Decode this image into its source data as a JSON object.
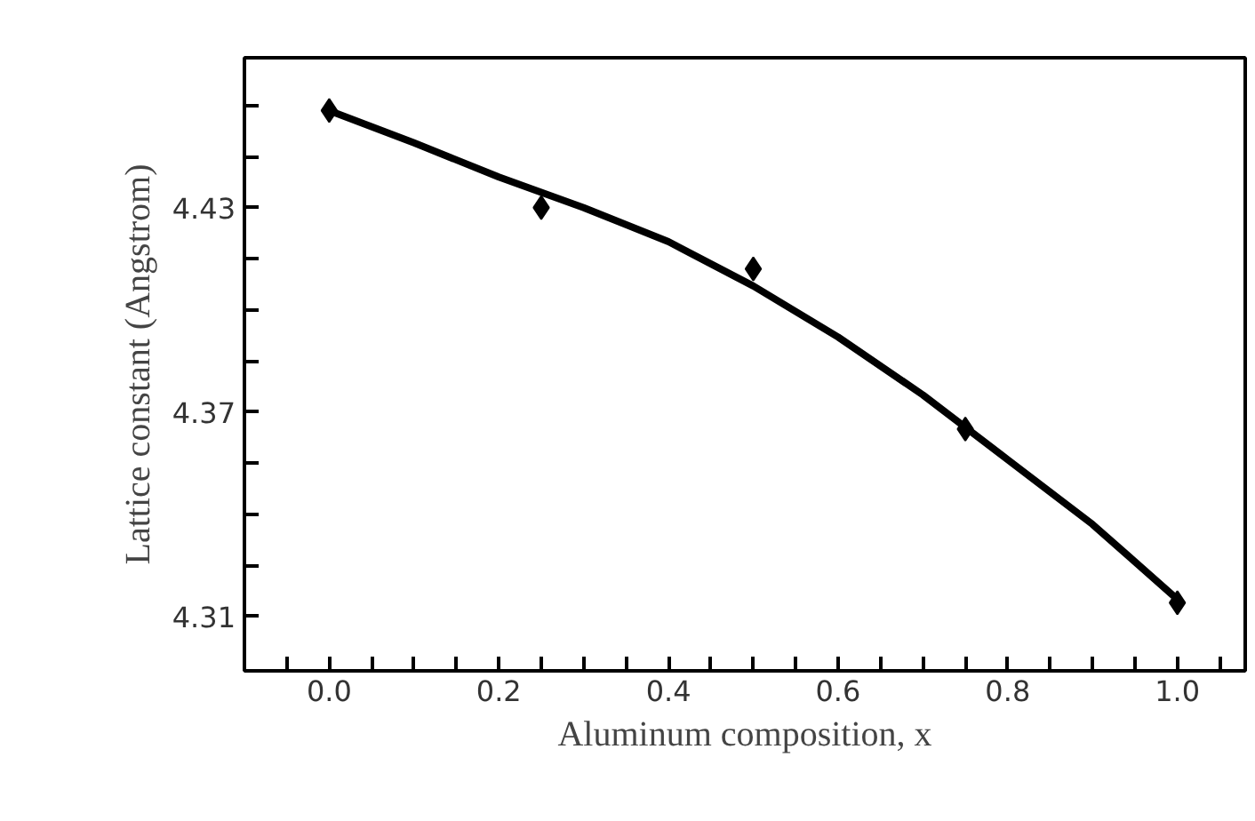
{
  "chart_data": {
    "type": "scatter",
    "xlabel": "Aluminum composition, x",
    "ylabel": "Lattice constant (Angstrom)",
    "xlim": [
      -0.1,
      1.08
    ],
    "ylim": [
      4.294,
      4.474
    ],
    "xticks": [
      {
        "value": -0.1,
        "label": null
      },
      {
        "value": -0.05,
        "label": null
      },
      {
        "value": 0,
        "label": "0.0"
      },
      {
        "value": 0.05,
        "label": null
      },
      {
        "value": 0.1,
        "label": null
      },
      {
        "value": 0.15,
        "label": null
      },
      0.2,
      {
        "value": 0.25,
        "label": null
      },
      {
        "value": 0.3,
        "label": null
      },
      {
        "value": 0.35,
        "label": null
      },
      0.4,
      {
        "value": 0.45,
        "label": null
      },
      {
        "value": 0.5,
        "label": null
      },
      {
        "value": 0.55,
        "label": null
      },
      0.6,
      {
        "value": 0.65,
        "label": null
      },
      {
        "value": 0.7,
        "label": null
      },
      {
        "value": 0.75,
        "label": null
      },
      0.8,
      {
        "value": 0.85,
        "label": null
      },
      {
        "value": 0.9,
        "label": null
      },
      {
        "value": 0.95,
        "label": null
      },
      {
        "value": 1,
        "label": "1.0"
      },
      {
        "value": 1.05,
        "label": null
      }
    ],
    "yticks": [
      4.31,
      {
        "value": 4.325,
        "label": null
      },
      {
        "value": 4.34,
        "label": null
      },
      {
        "value": 4.355,
        "label": null
      },
      4.37,
      {
        "value": 4.385,
        "label": null
      },
      {
        "value": 4.4,
        "label": null
      },
      {
        "value": 4.415,
        "label": null
      },
      4.43,
      {
        "value": 4.445,
        "label": null
      },
      {
        "value": 4.46,
        "label": null
      }
    ],
    "grid": false,
    "series": [
      {
        "marker": "diamond",
        "color": "#000000",
        "x": [
          0,
          0.25,
          0.5,
          0.75,
          1.0
        ],
        "values": [
          4.4585,
          4.43,
          4.412,
          4.365,
          4.314
        ]
      },
      {
        "type": "line",
        "line_style": "solid",
        "color": "#000000",
        "x": [
          0,
          0.1,
          0.2,
          0.3,
          0.4,
          0.5,
          0.6,
          0.7,
          0.8,
          0.9,
          1.0
        ],
        "values": [
          4.4585,
          4.449,
          4.439,
          4.43,
          4.42,
          4.407,
          4.392,
          4.375,
          4.356,
          4.337,
          4.315
        ]
      }
    ]
  }
}
